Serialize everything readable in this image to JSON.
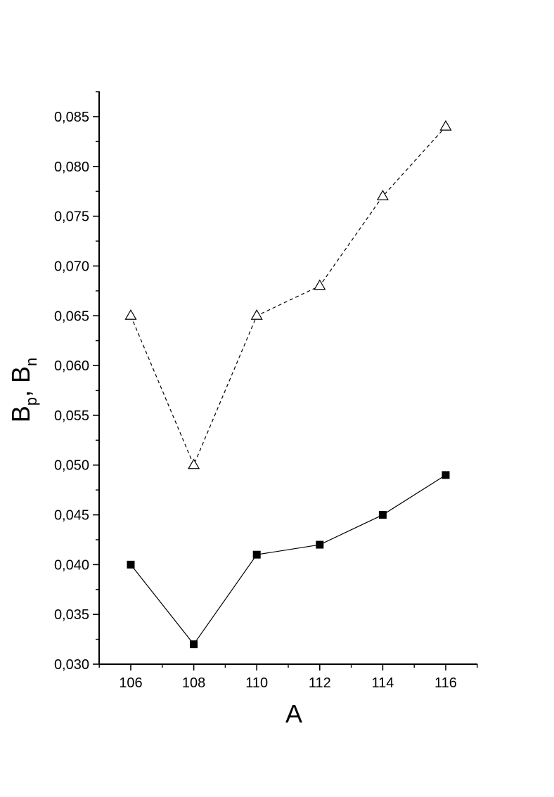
{
  "chart_data": {
    "type": "line",
    "title": "",
    "xlabel": "A",
    "ylabel": {
      "parts": [
        "B",
        "p",
        ", B",
        "n"
      ]
    },
    "x": [
      106,
      108,
      110,
      112,
      114,
      116
    ],
    "xlim": [
      105,
      117
    ],
    "ylim": [
      0.03,
      0.087
    ],
    "x_ticks": [
      {
        "value": 106,
        "label": "106"
      },
      {
        "value": 108,
        "label": "108"
      },
      {
        "value": 110,
        "label": "110"
      },
      {
        "value": 112,
        "label": "112"
      },
      {
        "value": 114,
        "label": "114"
      },
      {
        "value": 116,
        "label": "116"
      }
    ],
    "x_minor_ticks": [
      105,
      107,
      109,
      111,
      113,
      115,
      117
    ],
    "y_ticks": [
      {
        "value": 0.03,
        "label": "0,030"
      },
      {
        "value": 0.035,
        "label": "0,035"
      },
      {
        "value": 0.04,
        "label": "0,040"
      },
      {
        "value": 0.045,
        "label": "0,045"
      },
      {
        "value": 0.05,
        "label": "0,050"
      },
      {
        "value": 0.055,
        "label": "0,055"
      },
      {
        "value": 0.06,
        "label": "0,060"
      },
      {
        "value": 0.065,
        "label": "0,065"
      },
      {
        "value": 0.07,
        "label": "0,070"
      },
      {
        "value": 0.075,
        "label": "0,075"
      },
      {
        "value": 0.08,
        "label": "0,080"
      },
      {
        "value": 0.085,
        "label": "0,085"
      }
    ],
    "y_minor_ticks": [
      0.0325,
      0.0375,
      0.0425,
      0.0475,
      0.0525,
      0.0575,
      0.0625,
      0.0675,
      0.0725,
      0.0775,
      0.0825
    ],
    "grid": false,
    "legend": "none",
    "series": [
      {
        "values": [
          0.065,
          0.05,
          0.065,
          0.068,
          0.077,
          0.084
        ],
        "marker": "open-triangle",
        "line_style": "dashed",
        "color": "#000000"
      },
      {
        "values": [
          0.04,
          0.032,
          0.041,
          0.042,
          0.045,
          0.049
        ],
        "marker": "filled-square",
        "line_style": "solid",
        "color": "#000000"
      }
    ]
  }
}
